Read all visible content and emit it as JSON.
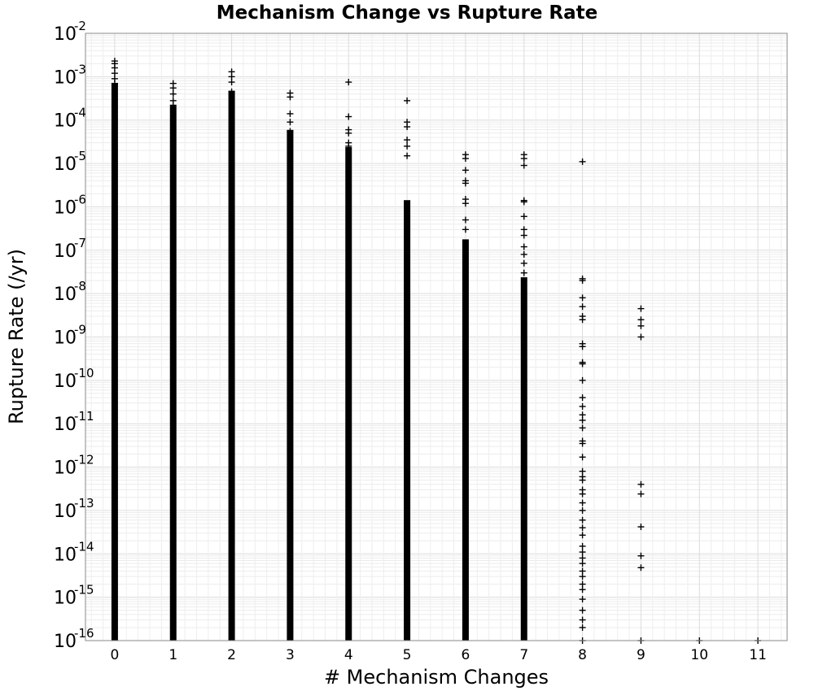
{
  "chart_data": {
    "type": "scatter",
    "title": "Mechanism Change vs Rupture Rate",
    "xlabel": "# Mechanism Changes",
    "ylabel": "Rupture Rate (/yr)",
    "xlim": [
      -0.5,
      11.5
    ],
    "ylim": [
      1e-16,
      0.01
    ],
    "yscale": "log",
    "x_ticks": [
      0,
      1,
      2,
      3,
      4,
      5,
      6,
      7,
      8,
      9,
      10,
      11
    ],
    "y_tick_base": "10",
    "y_tick_exponents": [
      "-16",
      "-15",
      "-14",
      "-13",
      "-12",
      "-11",
      "-10",
      "-9",
      "-8",
      "-7",
      "-6",
      "-5",
      "-4",
      "-3",
      "-2"
    ],
    "grid": true,
    "marker": "+",
    "marker_color": "#000000",
    "series": [
      {
        "dense_ranges": [
          [
            1e-16,
            0.0006
          ]
        ],
        "points": [
          {
            "x": 0,
            "y": 0.0023
          },
          {
            "x": 0,
            "y": 0.002
          },
          {
            "x": 0,
            "y": 0.0016
          },
          {
            "x": 0,
            "y": 0.0012
          },
          {
            "x": 0,
            "y": 0.0009
          },
          {
            "x": 0,
            "y": 0.0007
          },
          {
            "x": 1,
            "y": 0.0007
          },
          {
            "x": 1,
            "y": 0.00055
          },
          {
            "x": 1,
            "y": 0.0004
          },
          {
            "x": 1,
            "y": 0.00028
          },
          {
            "x": 1,
            "y": 0.00022
          },
          {
            "x": 2,
            "y": 0.0013
          },
          {
            "x": 2,
            "y": 0.001
          },
          {
            "x": 2,
            "y": 0.00075
          },
          {
            "x": 2,
            "y": 0.00045
          },
          {
            "x": 3,
            "y": 0.00042
          },
          {
            "x": 3,
            "y": 0.00034
          },
          {
            "x": 3,
            "y": 0.00014
          },
          {
            "x": 3,
            "y": 9e-05
          },
          {
            "x": 3,
            "y": 5.5e-05
          },
          {
            "x": 4,
            "y": 0.00075
          },
          {
            "x": 4,
            "y": 0.00012
          },
          {
            "x": 4,
            "y": 6e-05
          },
          {
            "x": 4,
            "y": 5e-05
          },
          {
            "x": 4,
            "y": 3e-05
          },
          {
            "x": 4,
            "y": 2.5e-05
          },
          {
            "x": 5,
            "y": 0.00028
          },
          {
            "x": 5,
            "y": 9e-05
          },
          {
            "x": 5,
            "y": 7e-05
          },
          {
            "x": 5,
            "y": 3.5e-05
          },
          {
            "x": 5,
            "y": 2.5e-05
          },
          {
            "x": 5,
            "y": 1.5e-05
          },
          {
            "x": 6,
            "y": 1.6e-05
          },
          {
            "x": 6,
            "y": 1.3e-05
          },
          {
            "x": 6,
            "y": 7e-06
          },
          {
            "x": 6,
            "y": 4e-06
          },
          {
            "x": 6,
            "y": 3.5e-06
          },
          {
            "x": 6,
            "y": 1.5e-06
          },
          {
            "x": 6,
            "y": 1.2e-06
          },
          {
            "x": 6,
            "y": 5e-07
          },
          {
            "x": 6,
            "y": 3e-07
          },
          {
            "x": 7,
            "y": 1.6e-05
          },
          {
            "x": 7,
            "y": 1.3e-05
          },
          {
            "x": 7,
            "y": 9e-06
          },
          {
            "x": 7,
            "y": 1.4e-06
          },
          {
            "x": 7,
            "y": 1.3e-06
          },
          {
            "x": 7,
            "y": 6e-07
          },
          {
            "x": 7,
            "y": 3e-07
          },
          {
            "x": 7,
            "y": 2.2e-07
          },
          {
            "x": 7,
            "y": 1.2e-07
          },
          {
            "x": 7,
            "y": 8e-08
          },
          {
            "x": 7,
            "y": 5e-08
          },
          {
            "x": 7,
            "y": 3e-08
          },
          {
            "x": 8,
            "y": 1.1e-05
          },
          {
            "x": 8,
            "y": 2.2e-08
          },
          {
            "x": 8,
            "y": 2e-08
          },
          {
            "x": 8,
            "y": 8e-09
          },
          {
            "x": 8,
            "y": 5e-09
          },
          {
            "x": 8,
            "y": 3e-09
          },
          {
            "x": 8,
            "y": 2.5e-09
          },
          {
            "x": 8,
            "y": 7e-10
          },
          {
            "x": 8,
            "y": 6e-10
          },
          {
            "x": 8,
            "y": 2.6e-10
          },
          {
            "x": 8,
            "y": 2.4e-10
          },
          {
            "x": 8,
            "y": 1e-10
          },
          {
            "x": 8,
            "y": 4e-11
          },
          {
            "x": 8,
            "y": 2.5e-11
          },
          {
            "x": 8,
            "y": 1.6e-11
          },
          {
            "x": 8,
            "y": 1.2e-11
          },
          {
            "x": 8,
            "y": 8e-12
          },
          {
            "x": 8,
            "y": 4e-12
          },
          {
            "x": 8,
            "y": 3.5e-12
          },
          {
            "x": 8,
            "y": 1.7e-12
          },
          {
            "x": 8,
            "y": 8e-13
          },
          {
            "x": 8,
            "y": 6e-13
          },
          {
            "x": 8,
            "y": 5e-13
          },
          {
            "x": 8,
            "y": 3e-13
          },
          {
            "x": 8,
            "y": 2.4e-13
          },
          {
            "x": 8,
            "y": 1.5e-13
          },
          {
            "x": 8,
            "y": 1e-13
          },
          {
            "x": 8,
            "y": 6e-14
          },
          {
            "x": 8,
            "y": 4e-14
          },
          {
            "x": 8,
            "y": 2.7e-14
          },
          {
            "x": 8,
            "y": 1.5e-14
          },
          {
            "x": 8,
            "y": 1.1e-14
          },
          {
            "x": 8,
            "y": 8e-15
          },
          {
            "x": 8,
            "y": 6e-15
          },
          {
            "x": 8,
            "y": 4e-15
          },
          {
            "x": 8,
            "y": 3e-15
          },
          {
            "x": 8,
            "y": 2e-15
          },
          {
            "x": 8,
            "y": 1.5e-15
          },
          {
            "x": 8,
            "y": 9e-16
          },
          {
            "x": 8,
            "y": 5e-16
          },
          {
            "x": 8,
            "y": 3e-16
          },
          {
            "x": 8,
            "y": 2e-16
          },
          {
            "x": 8,
            "y": 1e-16
          },
          {
            "x": 9,
            "y": 4.5e-09
          },
          {
            "x": 9,
            "y": 2.5e-09
          },
          {
            "x": 9,
            "y": 1.8e-09
          },
          {
            "x": 9,
            "y": 1e-09
          },
          {
            "x": 9,
            "y": 4e-13
          },
          {
            "x": 9,
            "y": 2.4e-13
          },
          {
            "x": 9,
            "y": 4.2e-14
          },
          {
            "x": 9,
            "y": 9e-15
          },
          {
            "x": 9,
            "y": 4.8e-15
          },
          {
            "x": 9,
            "y": 1e-16
          },
          {
            "x": 10,
            "y": 1e-16
          },
          {
            "x": 11,
            "y": 1e-16
          }
        ]
      },
      {
        "x": 1,
        "dense_ranges": [
          [
            1e-16,
            0.00018
          ]
        ]
      },
      {
        "x": 2,
        "dense_ranges": [
          [
            1e-16,
            0.0004
          ]
        ]
      },
      {
        "x": 3,
        "dense_ranges": [
          [
            1e-16,
            5e-05
          ]
        ]
      },
      {
        "x": 4,
        "dense_ranges": [
          [
            1e-16,
            2e-05
          ]
        ]
      },
      {
        "x": 5,
        "dense_ranges": [
          [
            1e-16,
            1.2e-06
          ]
        ]
      },
      {
        "x": 6,
        "dense_ranges": [
          [
            1e-16,
            1.5e-07
          ]
        ]
      },
      {
        "x": 7,
        "dense_ranges": [
          [
            1e-16,
            2e-08
          ]
        ]
      }
    ]
  }
}
